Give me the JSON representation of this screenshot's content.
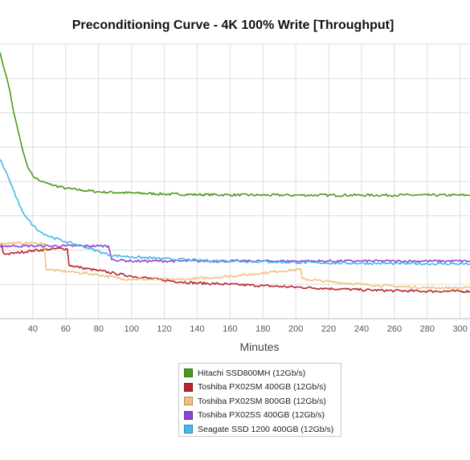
{
  "chart_data": {
    "type": "line",
    "title": "Preconditioning Curve - 4K 100% Write [Throughput]",
    "xlabel": "Minutes",
    "ylabel": "",
    "xlim": [
      20,
      306
    ],
    "ylim": [
      0,
      100
    ],
    "x_ticks": [
      40,
      60,
      80,
      100,
      120,
      140,
      160,
      180,
      200,
      220,
      240,
      260,
      280,
      300
    ],
    "y_ticks": [],
    "grid": true,
    "legend_position": "bottom-center",
    "series": [
      {
        "name": "Hitachi SSD800MH (12Gb/s)",
        "color": "#4a9a1c",
        "points": [
          [
            20,
            97
          ],
          [
            22,
            92
          ],
          [
            24,
            88
          ],
          [
            26,
            83
          ],
          [
            28,
            76
          ],
          [
            30,
            71
          ],
          [
            32,
            66
          ],
          [
            34,
            61
          ],
          [
            36,
            57
          ],
          [
            38,
            54
          ],
          [
            40,
            52
          ],
          [
            45,
            50
          ],
          [
            50,
            49
          ],
          [
            60,
            47.5
          ],
          [
            70,
            46.8
          ],
          [
            80,
            46.2
          ],
          [
            100,
            45.8
          ],
          [
            120,
            45.4
          ],
          [
            140,
            45.2
          ],
          [
            160,
            45.1
          ],
          [
            180,
            45
          ],
          [
            200,
            45
          ],
          [
            220,
            45
          ],
          [
            240,
            45
          ],
          [
            260,
            45
          ],
          [
            280,
            45
          ],
          [
            306,
            45
          ]
        ]
      },
      {
        "name": "Toshiba PX02SM 400GB (12Gb/s)",
        "color": "#b3262c",
        "points": [
          [
            20,
            27.5
          ],
          [
            21,
            27
          ],
          [
            22,
            24
          ],
          [
            24,
            23.5
          ],
          [
            30,
            24
          ],
          [
            40,
            24.8
          ],
          [
            50,
            25.3
          ],
          [
            58,
            25.6
          ],
          [
            61,
            25.4
          ],
          [
            62,
            19.5
          ],
          [
            70,
            18.5
          ],
          [
            80,
            17.5
          ],
          [
            90,
            16.5
          ],
          [
            100,
            15.5
          ],
          [
            110,
            14.8
          ],
          [
            120,
            14
          ],
          [
            130,
            13.4
          ],
          [
            140,
            13
          ],
          [
            160,
            12.5
          ],
          [
            180,
            12
          ],
          [
            200,
            11.5
          ],
          [
            220,
            11
          ],
          [
            240,
            10.5
          ],
          [
            260,
            10.2
          ],
          [
            280,
            10
          ],
          [
            306,
            10
          ]
        ]
      },
      {
        "name": "Toshiba PX02SM 800GB (12Gb/s)",
        "color": "#f0c080",
        "points": [
          [
            20,
            27.5
          ],
          [
            30,
            27.5
          ],
          [
            40,
            27.5
          ],
          [
            47,
            27.4
          ],
          [
            48,
            18
          ],
          [
            55,
            17.5
          ],
          [
            65,
            17
          ],
          [
            80,
            16
          ],
          [
            95,
            14.5
          ],
          [
            110,
            14.3
          ],
          [
            130,
            14.3
          ],
          [
            150,
            15
          ],
          [
            170,
            16
          ],
          [
            190,
            17.3
          ],
          [
            203,
            18
          ],
          [
            204,
            14.5
          ],
          [
            220,
            13.5
          ],
          [
            240,
            12.5
          ],
          [
            260,
            11.8
          ],
          [
            280,
            11.3
          ],
          [
            306,
            11.2
          ]
        ]
      },
      {
        "name": "Toshiba PX02SS 400GB (12Gb/s)",
        "color": "#8e44d6",
        "points": [
          [
            20,
            26.5
          ],
          [
            30,
            26.5
          ],
          [
            40,
            26.5
          ],
          [
            50,
            26.5
          ],
          [
            60,
            26.5
          ],
          [
            70,
            26.5
          ],
          [
            80,
            26.5
          ],
          [
            86,
            26.5
          ],
          [
            88,
            21.5
          ],
          [
            100,
            21
          ],
          [
            120,
            21
          ],
          [
            140,
            21
          ],
          [
            160,
            21
          ],
          [
            180,
            21
          ],
          [
            200,
            21
          ],
          [
            220,
            21
          ],
          [
            240,
            21
          ],
          [
            260,
            21
          ],
          [
            280,
            21
          ],
          [
            306,
            21
          ]
        ]
      },
      {
        "name": "Seagate SSD 1200 400GB (12Gb/s)",
        "color": "#44b8e8",
        "points": [
          [
            20,
            58
          ],
          [
            24,
            53
          ],
          [
            28,
            47
          ],
          [
            32,
            41
          ],
          [
            36,
            37
          ],
          [
            40,
            34
          ],
          [
            45,
            31.5
          ],
          [
            50,
            30
          ],
          [
            60,
            28
          ],
          [
            70,
            26.5
          ],
          [
            80,
            24.5
          ],
          [
            88,
            23
          ],
          [
            95,
            22.8
          ],
          [
            100,
            22.5
          ],
          [
            120,
            21.8
          ],
          [
            140,
            21.3
          ],
          [
            160,
            21
          ],
          [
            180,
            20.8
          ],
          [
            200,
            20.5
          ],
          [
            220,
            20.3
          ],
          [
            240,
            20.2
          ],
          [
            260,
            20.1
          ],
          [
            280,
            20
          ],
          [
            306,
            20
          ]
        ]
      }
    ]
  }
}
